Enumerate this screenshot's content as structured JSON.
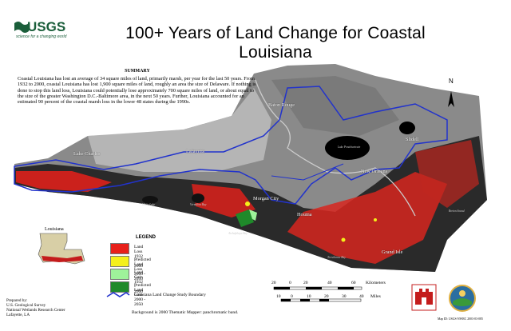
{
  "header": {
    "title": "100+ Years of Land Change for Coastal Louisiana",
    "logo_word": "USGS",
    "logo_tagline": "science for a changing world"
  },
  "summary": {
    "title": "SUMMARY",
    "text": "Coastal Louisiana has lost an average of 34 square miles of land, primarily marsh, per year for the last 50 years. From 1932 to 2000, coastal Louisiana has lost 1,900 square miles of land, roughly an area the size of Delaware. If nothing is done to stop this land loss, Louisiana could potentially lose approximately 700 square miles of land, or about equal to the size of the greater Washington D.C.-Baltimore area, in the next 50 years. Further, Louisiana accounted for an estimated 90 percent of the coastal marsh loss in the lower 48 states during the 1990s."
  },
  "places": {
    "lake_charles": "Lake Charles",
    "lafayette": "Lafayette",
    "baton_rouge": "Baton Rouge",
    "slidell": "Slidell",
    "new_orleans": "New Orleans",
    "morgan_city": "Morgan City",
    "houma": "Houma",
    "grand_isle": "Grand Isle",
    "lake_pontchartrain": "Lake Pontchartrain",
    "white_lake": "White Lake",
    "vermilion_bay": "Vermilion Bay",
    "atchafalaya_bay": "Atchafalaya Bay",
    "terrebonne_bay": "Terrebonne Bay",
    "breton_sound": "Breton Sound"
  },
  "inset": {
    "label": "Louisiana"
  },
  "legend": {
    "title": "LEGEND",
    "items": [
      {
        "label": "Land Loss 1932 - 2000",
        "color": "#e8201a"
      },
      {
        "label": "Predicted Land Loss 2000 - 2050",
        "color": "#f4f01a"
      },
      {
        "label": "Land Gain 1932 - 2000",
        "color": "#9ef29a"
      },
      {
        "label": "Predicted Land Gain 2000 - 2050",
        "color": "#1f8a2a"
      }
    ],
    "boundary_label": "Louisiana Land Change Study Boundary",
    "boundary_color": "#2233cc"
  },
  "scale": {
    "km_ticks": [
      "20",
      "0",
      "20",
      "40",
      "60"
    ],
    "km_unit": "Kilometers",
    "mi_ticks": [
      "10",
      "0",
      "10",
      "20",
      "30",
      "40"
    ],
    "mi_unit": "Miles"
  },
  "north_arrow": "N",
  "prepared_by": {
    "line1": "Prepared by:",
    "line2": "U.S. Geological Survey",
    "line3": "National Wetlands Research Center",
    "line4": "Lafayette, LA"
  },
  "background_note": "Background is 2000 Thematic Mapper: panchromatic band.",
  "map_id": "Map ID: USGS-NWRC 2003-03-085"
}
